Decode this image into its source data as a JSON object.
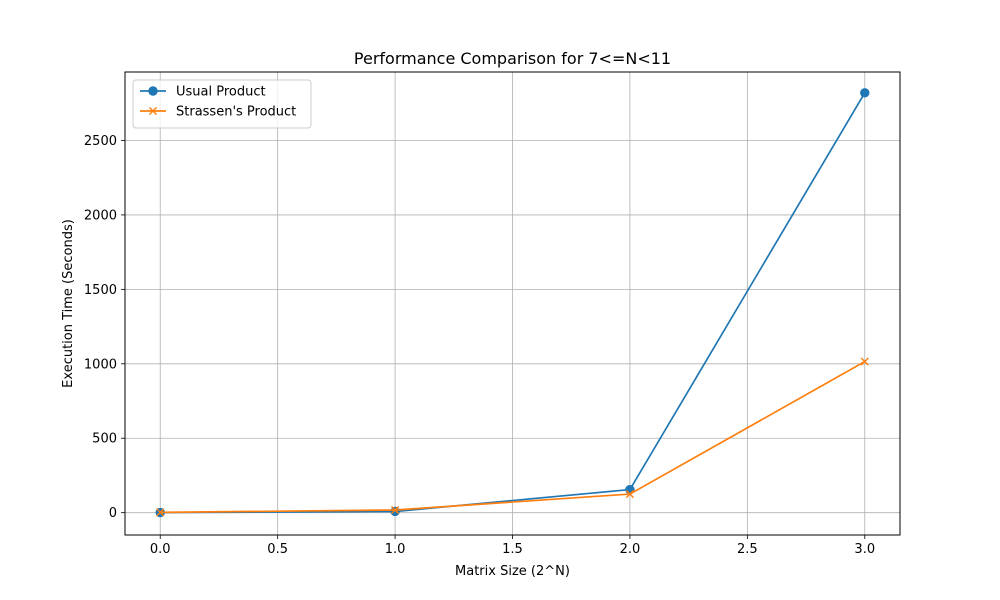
{
  "chart_data": {
    "type": "line",
    "title": "Performance Comparison for 7<=N<11",
    "xlabel": "Matrix Size (2^N)",
    "ylabel": "Execution Time (Seconds)",
    "x": [
      0,
      1,
      2,
      3
    ],
    "xlim": [
      -0.15,
      3.15
    ],
    "ylim": [
      -150,
      2960
    ],
    "xticks": [
      0.0,
      0.5,
      1.0,
      1.5,
      2.0,
      2.5,
      3.0
    ],
    "xtick_labels": [
      "0.0",
      "0.5",
      "1.0",
      "1.5",
      "2.0",
      "2.5",
      "3.0"
    ],
    "yticks": [
      0,
      500,
      1000,
      1500,
      2000,
      2500
    ],
    "ytick_labels": [
      "0",
      "500",
      "1000",
      "1500",
      "2000",
      "2500"
    ],
    "grid": true,
    "legend_position": "upper-left",
    "series": [
      {
        "name": "Usual Product",
        "values": [
          1,
          8,
          155,
          2820
        ],
        "color": "#1f77b4",
        "marker": "circle"
      },
      {
        "name": "Strassen's Product",
        "values": [
          2,
          18,
          125,
          1015
        ],
        "color": "#ff7f0e",
        "marker": "x"
      }
    ]
  }
}
